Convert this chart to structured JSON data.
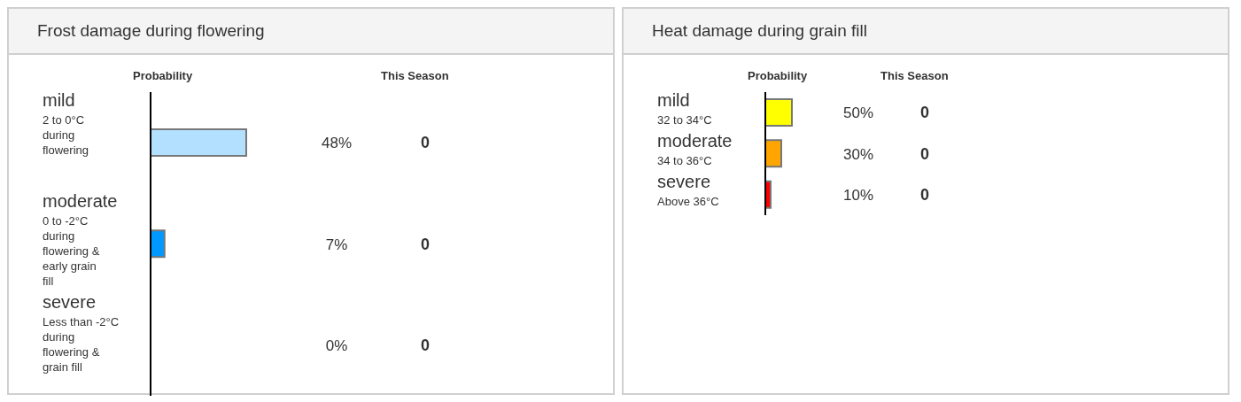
{
  "chart_data": [
    {
      "type": "bar",
      "orientation": "horizontal",
      "title": "Frost damage during flowering",
      "categories": [
        "mild\n2 to 0°C during flowering",
        "moderate\n0 to -2°C during flowering & early grain fill",
        "severe\nLess than -2°C during flowering & grain fill"
      ],
      "values": [
        48,
        7,
        0
      ],
      "colors": [
        "#b3e0ff",
        "#0099ff",
        "#0066cc"
      ],
      "value_labels": [
        "48%",
        "7%",
        "0%"
      ],
      "annotations": [
        "Probability",
        "This Season",
        "0",
        "0",
        "0"
      ],
      "legend": false,
      "grid": false
    },
    {
      "type": "bar",
      "orientation": "horizontal",
      "title": "Heat damage during grain fill",
      "categories": [
        "mild\n32 to 34°C",
        "moderate\n34 to 36°C",
        "severe\nAbove 36°C"
      ],
      "values": [
        50,
        30,
        10
      ],
      "colors": [
        "#ffff00",
        "#ffa500",
        "#ff0000"
      ],
      "value_labels": [
        "50%",
        "30%",
        "10%"
      ],
      "annotations": [
        "Probability",
        "This Season",
        "0",
        "0",
        "0"
      ],
      "legend": false,
      "grid": false
    }
  ]
}
